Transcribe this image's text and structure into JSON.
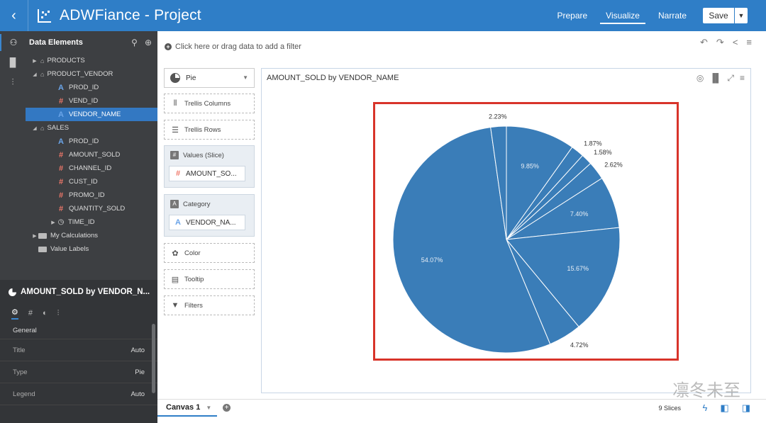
{
  "header": {
    "title": "ADWFiance - Project",
    "nav": [
      "Prepare",
      "Visualize",
      "Narrate"
    ],
    "active_nav": "Visualize",
    "save_label": "Save",
    "accent": "#2f7ec7"
  },
  "data_panel": {
    "title": "Data Elements",
    "tree": [
      {
        "label": "PRODUCTS",
        "kind": "folder",
        "caret": "▶",
        "level": 1
      },
      {
        "label": "PRODUCT_VENDOR",
        "kind": "folder",
        "caret": "◢",
        "level": 1
      },
      {
        "label": "PROD_ID",
        "kind": "attr",
        "level": 2
      },
      {
        "label": "VEND_ID",
        "kind": "measure",
        "level": 2
      },
      {
        "label": "VENDOR_NAME",
        "kind": "attr",
        "level": 2,
        "selected": true
      },
      {
        "label": "SALES",
        "kind": "folder",
        "caret": "◢",
        "level": 1
      },
      {
        "label": "PROD_ID",
        "kind": "attr",
        "level": 2
      },
      {
        "label": "AMOUNT_SOLD",
        "kind": "measure",
        "level": 2
      },
      {
        "label": "CHANNEL_ID",
        "kind": "measure",
        "level": 2
      },
      {
        "label": "CUST_ID",
        "kind": "measure",
        "level": 2
      },
      {
        "label": "PROMO_ID",
        "kind": "measure",
        "level": 2
      },
      {
        "label": "QUANTITY_SOLD",
        "kind": "measure",
        "level": 2
      },
      {
        "label": "TIME_ID",
        "kind": "time",
        "caret": "▶",
        "level": 2
      },
      {
        "label": "My Calculations",
        "kind": "dir",
        "caret": "▶",
        "level": 1
      },
      {
        "label": "Value Labels",
        "kind": "dir",
        "level": 1
      }
    ]
  },
  "properties": {
    "title": "AMOUNT_SOLD by VENDOR_N...",
    "section": "General",
    "rows": [
      {
        "label": "Title",
        "value": "Auto"
      },
      {
        "label": "Type",
        "value": "Pie"
      },
      {
        "label": "Legend",
        "value": "Auto"
      }
    ]
  },
  "filter_bar": {
    "placeholder": "Click here or drag data to add a filter"
  },
  "grammar": {
    "viz_type": "Pie",
    "trellis_columns": "Trellis Columns",
    "trellis_rows": "Trellis Rows",
    "values_label": "Values (Slice)",
    "values_pill": "AMOUNT_SO...",
    "category_label": "Category",
    "category_pill": "VENDOR_NA...",
    "color": "Color",
    "tooltip": "Tooltip",
    "filters": "Filters"
  },
  "canvas": {
    "chart_title": "AMOUNT_SOLD by VENDOR_NAME",
    "tab_label": "Canvas 1",
    "slice_count": "9 Slices",
    "watermark": "凛冬未至"
  },
  "chart_data": {
    "type": "pie",
    "title": "AMOUNT_SOLD by VENDOR_NAME",
    "color": "#3a7db8",
    "values": [
      9.85,
      1.87,
      1.58,
      2.62,
      7.4,
      15.67,
      4.72,
      54.07,
      2.23
    ],
    "labels": [
      "9.85%",
      "1.87%",
      "1.58%",
      "2.62%",
      "7.40%",
      "15.67%",
      "4.72%",
      "54.07%",
      "2.23%"
    ],
    "label_position": [
      "inside",
      "outside",
      "outside",
      "outside",
      "inside",
      "inside",
      "outside",
      "inside",
      "outside"
    ]
  }
}
